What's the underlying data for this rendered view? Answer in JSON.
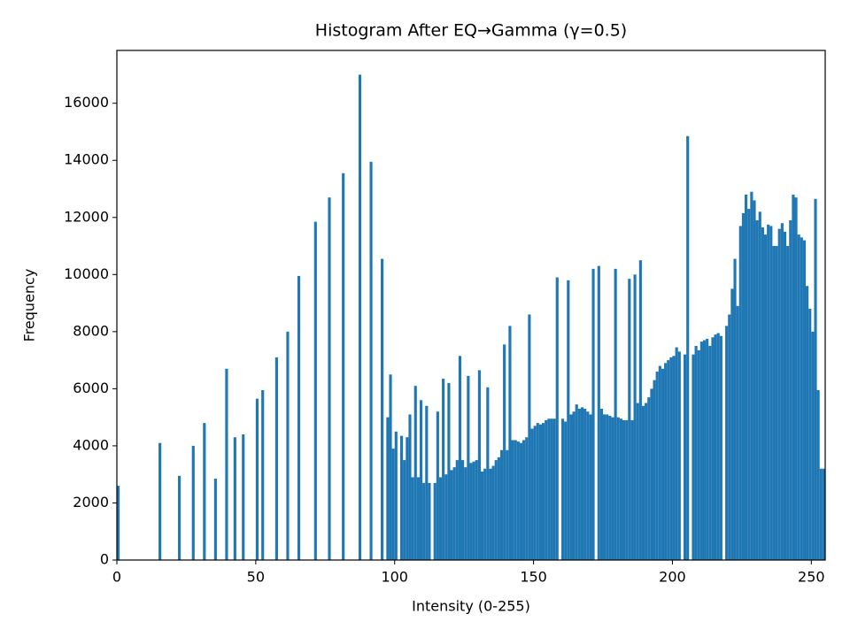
{
  "chart_data": {
    "type": "histogram",
    "title": "Histogram After EQ→Gamma (γ=0.5)",
    "x_label": "Intensity (0-255)",
    "y_label": "Frequency",
    "color": "#1f77b4",
    "grid": false,
    "xlim": [
      0,
      255
    ],
    "ylim": [
      0,
      17850
    ],
    "xticks": [
      0,
      50,
      100,
      150,
      200,
      250
    ],
    "yticks": [
      0,
      2000,
      4000,
      6000,
      8000,
      10000,
      12000,
      14000,
      16000
    ],
    "bins": [
      0,
      1,
      2,
      3,
      4,
      5,
      6,
      7,
      8,
      9,
      10,
      11,
      12,
      13,
      14,
      15,
      16,
      17,
      18,
      19,
      20,
      21,
      22,
      23,
      24,
      25,
      26,
      27,
      28,
      29,
      30,
      31,
      32,
      33,
      34,
      35,
      36,
      37,
      38,
      39,
      40,
      41,
      42,
      43,
      44,
      45,
      46,
      47,
      48,
      49,
      50,
      51,
      52,
      53,
      54,
      55,
      56,
      57,
      58,
      59,
      60,
      61,
      62,
      63,
      64,
      65,
      66,
      67,
      68,
      69,
      70,
      71,
      72,
      73,
      74,
      75,
      76,
      77,
      78,
      79,
      80,
      81,
      82,
      83,
      84,
      85,
      86,
      87,
      88,
      89,
      90,
      91,
      92,
      93,
      94,
      95,
      96,
      97,
      98,
      99,
      100,
      101,
      102,
      103,
      104,
      105,
      106,
      107,
      108,
      109,
      110,
      111,
      112,
      113,
      114,
      115,
      116,
      117,
      118,
      119,
      120,
      121,
      122,
      123,
      124,
      125,
      126,
      127,
      128,
      129,
      130,
      131,
      132,
      133,
      134,
      135,
      136,
      137,
      138,
      139,
      140,
      141,
      142,
      143,
      144,
      145,
      146,
      147,
      148,
      149,
      150,
      151,
      152,
      153,
      154,
      155,
      156,
      157,
      158,
      159,
      160,
      161,
      162,
      163,
      164,
      165,
      166,
      167,
      168,
      169,
      170,
      171,
      172,
      173,
      174,
      175,
      176,
      177,
      178,
      179,
      180,
      181,
      182,
      183,
      184,
      185,
      186,
      187,
      188,
      189,
      190,
      191,
      192,
      193,
      194,
      195,
      196,
      197,
      198,
      199,
      200,
      201,
      202,
      203,
      204,
      205,
      206,
      207,
      208,
      209,
      210,
      211,
      212,
      213,
      214,
      215,
      216,
      217,
      218,
      219,
      220,
      221,
      222,
      223,
      224,
      225,
      226,
      227,
      228,
      229,
      230,
      231,
      232,
      233,
      234,
      235,
      236,
      237,
      238,
      239,
      240,
      241,
      242,
      243,
      244,
      245,
      246,
      247,
      248,
      249,
      250,
      251,
      252,
      253,
      254,
      255,
      256
    ],
    "values": [
      2600,
      0,
      0,
      0,
      0,
      0,
      0,
      0,
      0,
      0,
      0,
      0,
      0,
      0,
      0,
      4100,
      0,
      0,
      0,
      0,
      0,
      0,
      2950,
      0,
      0,
      0,
      0,
      4000,
      0,
      0,
      0,
      4800,
      0,
      0,
      0,
      2850,
      0,
      0,
      0,
      6700,
      0,
      0,
      4300,
      0,
      0,
      4400,
      0,
      0,
      0,
      0,
      5650,
      0,
      5950,
      0,
      0,
      0,
      0,
      7100,
      0,
      0,
      0,
      8000,
      0,
      0,
      0,
      9950,
      0,
      0,
      0,
      0,
      0,
      11850,
      0,
      0,
      0,
      0,
      12700,
      0,
      0,
      0,
      0,
      13550,
      0,
      0,
      0,
      0,
      0,
      17000,
      0,
      0,
      0,
      13950,
      0,
      0,
      0,
      10550,
      0,
      5000,
      6500,
      3900,
      4500,
      0,
      4350,
      3500,
      4300,
      5100,
      2900,
      6100,
      2900,
      5600,
      2700,
      5400,
      2700,
      0,
      2700,
      5200,
      2900,
      6350,
      3000,
      6200,
      3150,
      3250,
      3500,
      7150,
      3500,
      3250,
      6450,
      3400,
      3450,
      3500,
      6650,
      3100,
      3200,
      6050,
      3200,
      3300,
      3500,
      3600,
      3850,
      7550,
      3850,
      8200,
      4200,
      4200,
      4150,
      4100,
      4200,
      4300,
      8600,
      4600,
      4700,
      4800,
      4750,
      4800,
      4900,
      4950,
      4950,
      4950,
      9900,
      0,
      4950,
      4850,
      9800,
      5100,
      5200,
      5450,
      5300,
      5350,
      5300,
      5200,
      5100,
      10200,
      0,
      10300,
      5300,
      5100,
      5100,
      5050,
      5000,
      10200,
      5000,
      4950,
      4900,
      4900,
      9850,
      4900,
      10000,
      5500,
      10500,
      5400,
      5500,
      5700,
      6000,
      6300,
      6600,
      6800,
      6700,
      6900,
      7000,
      7100,
      7150,
      7450,
      7300,
      0,
      7200,
      14850,
      0,
      7200,
      7500,
      7350,
      7650,
      7700,
      7750,
      7500,
      7800,
      7900,
      7950,
      7850,
      0,
      8200,
      8600,
      9500,
      10550,
      8900,
      11700,
      12150,
      12800,
      12300,
      12900,
      12600,
      11900,
      12200,
      11650,
      11400,
      11750,
      11700,
      11000,
      11000,
      11600,
      11800,
      11500,
      11000,
      11900,
      12800,
      12700,
      11400,
      11300,
      11200,
      9600,
      8800,
      8000,
      12650,
      5950,
      3200,
      3200,
      3200
    ]
  }
}
